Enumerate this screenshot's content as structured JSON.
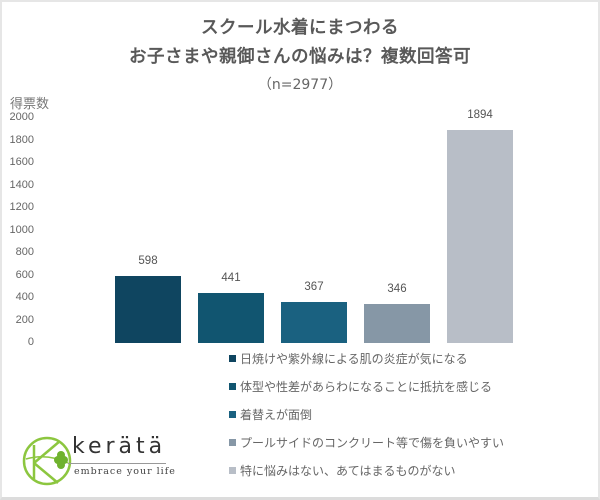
{
  "header": {
    "title_line1": "スクール水着にまつわる",
    "title_line2": "お子さまや親御さんの悩みは？複数回答可",
    "subtitle": "（n=2977）"
  },
  "axis": {
    "ylabel": "得票数",
    "ticks": [
      "2000",
      "1800",
      "1600",
      "1400",
      "1200",
      "1000",
      "800",
      "600",
      "400",
      "200",
      "0"
    ]
  },
  "bars": [
    {
      "value": "598",
      "color": "#0f4560"
    },
    {
      "value": "441",
      "color": "#115570"
    },
    {
      "value": "367",
      "color": "#1a6180"
    },
    {
      "value": "346",
      "color": "#8697a6"
    },
    {
      "value": "1894",
      "color": "#b8bec7"
    }
  ],
  "legend": [
    {
      "label": "日焼けや紫外線による肌の炎症が気になる",
      "color": "#0f4560"
    },
    {
      "label": "体型や性差があらわになることに抵抗を感じる",
      "color": "#115570"
    },
    {
      "label": "着替えが面倒",
      "color": "#1a6180"
    },
    {
      "label": "プールサイドのコンクリート等で傷を負いやすい",
      "color": "#8697a6"
    },
    {
      "label": "特に悩みはない、あてはまるものがない",
      "color": "#b8bec7"
    }
  ],
  "logo": {
    "name": "kerätä",
    "tagline": "embrace your life"
  },
  "chart_data": {
    "type": "bar",
    "title": "スクール水着にまつわる お子さまや親御さんの悩みは？複数回答可",
    "subtitle": "（n=2977）",
    "categories": [
      "日焼けや紫外線による肌の炎症が気になる",
      "体型や性差があらわになることに抵抗を感じる",
      "着替えが面倒",
      "プールサイドのコンクリート等で傷を負いやすい",
      "特に悩みはない、あてはまるものがない"
    ],
    "values": [
      598,
      441,
      367,
      346,
      1894
    ],
    "xlabel": "",
    "ylabel": "得票数",
    "ylim": [
      0,
      2000
    ],
    "yticks": [
      0,
      200,
      400,
      600,
      800,
      1000,
      1200,
      1400,
      1600,
      1800,
      2000
    ],
    "grid": false,
    "legend_position": "bottom-center",
    "data_labels": true
  }
}
